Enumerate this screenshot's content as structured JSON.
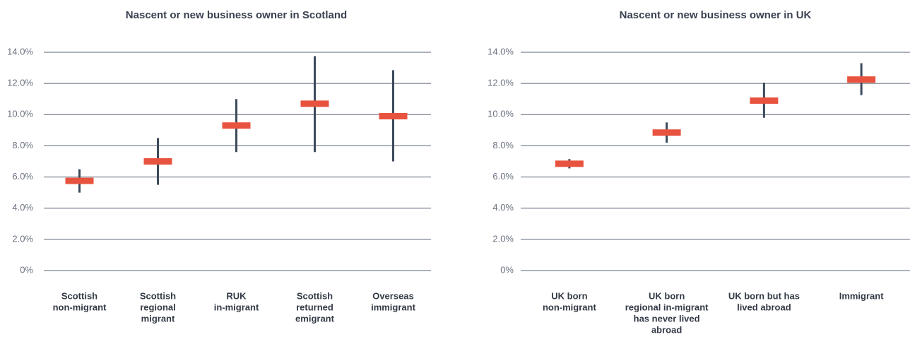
{
  "chart_data": [
    {
      "type": "errorbar",
      "title": "Nascent or new business owner in Scotland",
      "categories": [
        [
          "Scottish",
          "non-migrant"
        ],
        [
          "Scottish",
          "regional",
          "migrant"
        ],
        [
          "RUK",
          "in-migrant"
        ],
        [
          "Scottish",
          "returned",
          "emigrant"
        ],
        [
          "Overseas",
          "immigrant"
        ]
      ],
      "values": [
        5.75,
        7.0,
        9.3,
        10.7,
        9.9
      ],
      "low": [
        5.0,
        5.5,
        7.6,
        7.6,
        7.0
      ],
      "high": [
        6.5,
        8.5,
        11.0,
        13.75,
        12.85
      ],
      "color": "#e8533f",
      "whisker_color": "#3d4a5c",
      "ylim": [
        0,
        14
      ],
      "yticks": [
        {
          "value": 0,
          "label": "0%"
        },
        {
          "value": 2,
          "label": "2.0%"
        },
        {
          "value": 4,
          "label": "4.0%"
        },
        {
          "value": 6,
          "label": "6.0%"
        },
        {
          "value": 8,
          "label": "8.0%"
        },
        {
          "value": 10,
          "label": "10.0%"
        },
        {
          "value": 12,
          "label": "12.0%"
        },
        {
          "value": 14,
          "label": "14.0%"
        }
      ],
      "grid": true
    },
    {
      "type": "errorbar",
      "title": "Nascent or new business owner in UK",
      "categories": [
        [
          "UK born",
          "non-migrant"
        ],
        [
          "UK born",
          "regional in-migrant",
          "has never lived",
          "abroad"
        ],
        [
          "UK born but has",
          "lived abroad"
        ],
        [
          "Immigrant"
        ]
      ],
      "values": [
        6.85,
        8.85,
        10.9,
        12.25
      ],
      "low": [
        6.55,
        8.2,
        9.8,
        11.25
      ],
      "high": [
        7.15,
        9.5,
        12.05,
        13.3
      ],
      "color": "#e8533f",
      "whisker_color": "#3d4a5c",
      "ylim": [
        0,
        14
      ],
      "yticks": [
        {
          "value": 0,
          "label": "0%"
        },
        {
          "value": 2,
          "label": "2.0%"
        },
        {
          "value": 4,
          "label": "4.0%"
        },
        {
          "value": 6,
          "label": "6.0%"
        },
        {
          "value": 8,
          "label": "8.0%"
        },
        {
          "value": 10,
          "label": "10.0%"
        },
        {
          "value": 12,
          "label": "12.0%"
        },
        {
          "value": 14,
          "label": "14.0%"
        }
      ],
      "grid": true
    }
  ]
}
